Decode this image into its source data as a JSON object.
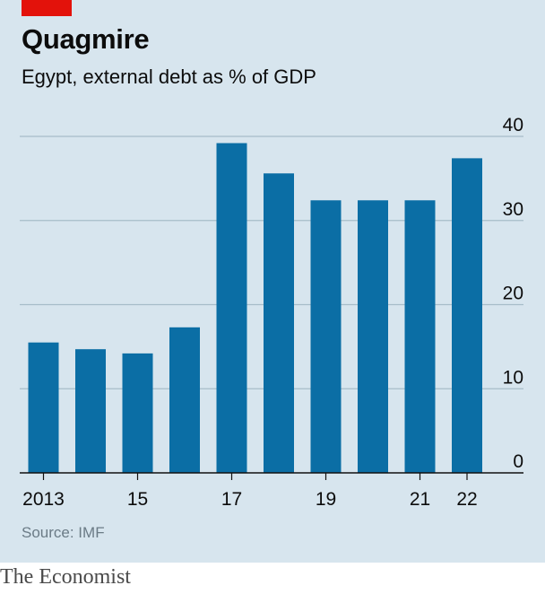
{
  "header": {
    "title": "Quagmire",
    "subtitle": "Egypt, external debt as % of GDP"
  },
  "source": "Source: IMF",
  "footer_brand": "The Economist",
  "colors": {
    "background": "#d7e5ee",
    "bar": "#0b6ea5",
    "brand_red": "#e3120b",
    "gridline": "#a7bcc9",
    "axis": "#111111"
  },
  "chart_data": {
    "type": "bar",
    "categories": [
      "2013",
      "2014",
      "2015",
      "2016",
      "2017",
      "2018",
      "2019",
      "2020",
      "2021",
      "2022"
    ],
    "values": [
      15.5,
      14.7,
      14.2,
      17.3,
      39.2,
      35.6,
      32.4,
      32.4,
      32.4,
      37.4
    ],
    "x_tick_labels": [
      {
        "category": "2013",
        "label": "2013"
      },
      {
        "category": "2015",
        "label": "15"
      },
      {
        "category": "2017",
        "label": "17"
      },
      {
        "category": "2019",
        "label": "19"
      },
      {
        "category": "2021",
        "label": "21"
      },
      {
        "category": "2022",
        "label": "22"
      }
    ],
    "y_ticks": [
      0,
      10,
      20,
      30,
      40
    ],
    "ylim": [
      0,
      40
    ],
    "y_axis_side": "right",
    "grid": true
  }
}
